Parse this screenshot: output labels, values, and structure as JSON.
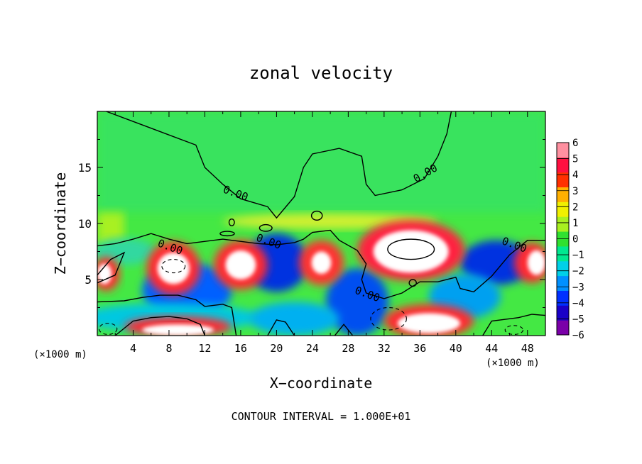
{
  "chart_data": {
    "type": "heatmap",
    "title": "zonal velocity",
    "xlabel": "X−coordinate",
    "ylabel": "Z−coordinate",
    "x_unit_label": "(×1000 m)",
    "z_unit_label": "(×1000 m)",
    "footer": "CONTOUR INTERVAL = 1.000E+01",
    "xlim": [
      0,
      50
    ],
    "ylim": [
      0,
      20
    ],
    "x_ticks": [
      4,
      8,
      12,
      16,
      20,
      24,
      28,
      32,
      36,
      40,
      44,
      48
    ],
    "y_ticks": [
      5,
      10,
      15
    ],
    "colorbar": {
      "ticks": [
        "6",
        "5",
        "4",
        "3",
        "2",
        "1",
        "0",
        "−1",
        "−2",
        "−3",
        "−4",
        "−5",
        "−6"
      ],
      "range": [
        -6,
        6
      ],
      "colors": [
        "#7a00a8",
        "#1a00c8",
        "#0030ff",
        "#0090ff",
        "#00d0e8",
        "#00e890",
        "#30e030",
        "#a8f020",
        "#f0f000",
        "#ffb000",
        "#ff3000",
        "#ff1040",
        "#ff90a0"
      ]
    },
    "contour_labels": [
      {
        "text": "0.00",
        "x": 15.3,
        "z": 12.4
      },
      {
        "text": "0.00",
        "x": 36.8,
        "z": 14.2
      },
      {
        "text": "0.00",
        "x": 19.0,
        "z": 8.1
      },
      {
        "text": "0.00",
        "x": 8.0,
        "z": 7.6
      },
      {
        "text": "0.00",
        "x": 30.0,
        "z": 3.4
      },
      {
        "text": "0.00",
        "x": 46.4,
        "z": 7.8
      }
    ],
    "features": [
      {
        "kind": "positive-max",
        "x": 35,
        "z": 7.6,
        "value": 6
      },
      {
        "kind": "positive",
        "x": 8.5,
        "z": 6,
        "value": 6
      },
      {
        "kind": "positive",
        "x": 16,
        "z": 6.2,
        "value": 6
      },
      {
        "kind": "positive",
        "x": 25,
        "z": 6.5,
        "value": 5
      },
      {
        "kind": "positive",
        "x": 37,
        "z": 1.2,
        "value": 6
      },
      {
        "kind": "negative",
        "x": 20,
        "z": 6.8,
        "value": -5
      },
      {
        "kind": "negative",
        "x": 44.5,
        "z": 7,
        "value": -5
      },
      {
        "kind": "negative",
        "x": 29,
        "z": 3,
        "value": -4
      },
      {
        "kind": "negative",
        "x": 11,
        "z": 4.5,
        "value": -4
      }
    ]
  }
}
